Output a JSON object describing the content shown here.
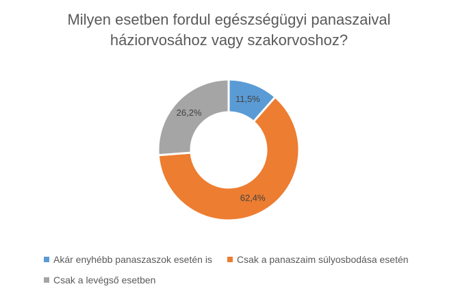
{
  "chart_data": {
    "type": "pie",
    "variant": "donut",
    "title": [
      "Milyen esetben fordul egészségügyi panaszaival",
      "háziorvosához vagy szakorvoshoz?"
    ],
    "slices": [
      {
        "name": "Akár enyhébb panaszaszok esetén is",
        "value": 11.5,
        "label": "11,5%",
        "color": "#5B9BD5"
      },
      {
        "name": "Csak a panaszaim súlyosbodása esetén",
        "value": 62.4,
        "label": "62,4%",
        "color": "#ED7D31"
      },
      {
        "name": "Csak a levégső esetben",
        "value": 26.2,
        "label": "26,2%",
        "color": "#A5A5A5"
      }
    ],
    "legend_position": "bottom"
  }
}
